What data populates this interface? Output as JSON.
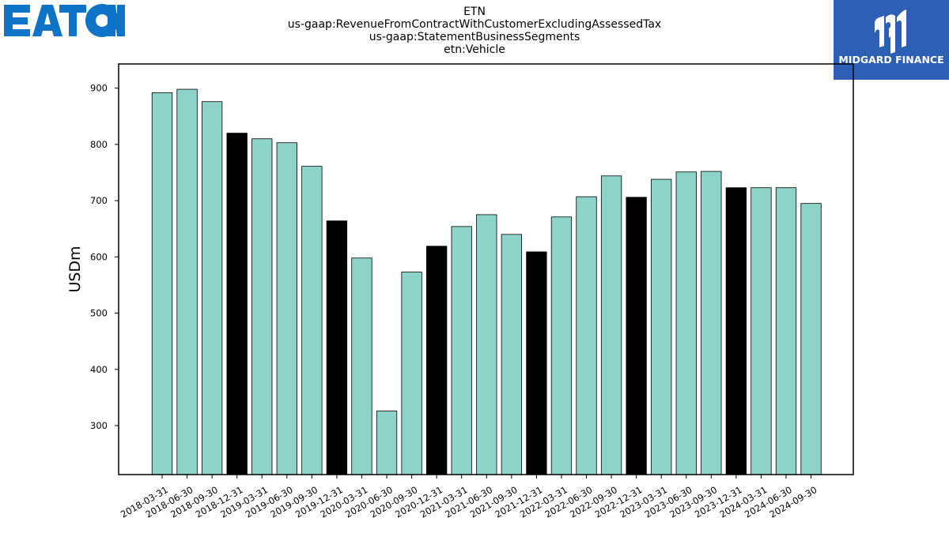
{
  "header": {
    "title_lines": [
      "ETN",
      "us-gaap:RevenueFromContractWithCustomerExcludingAssessedTax",
      "us-gaap:StatementBusinessSegments",
      "etn:Vehicle"
    ]
  },
  "logos": {
    "left": {
      "text": "EATON",
      "color": "#0f74c8"
    },
    "right": {
      "text": "MIDGARD FINANCE",
      "color": "#2d5fb5"
    }
  },
  "chart_data": {
    "type": "bar",
    "ylabel": "USDm",
    "xlabel": "",
    "ylim": [
      213,
      943
    ],
    "yticks": [
      300,
      400,
      500,
      600,
      700,
      800,
      900
    ],
    "colors": {
      "default": "#8dd3c7",
      "q4": "#000000"
    },
    "categories": [
      "2018-03-31",
      "2018-06-30",
      "2018-09-30",
      "2018-12-31",
      "2019-03-31",
      "2019-06-30",
      "2019-09-30",
      "2019-12-31",
      "2020-03-31",
      "2020-06-30",
      "2020-09-30",
      "2020-12-31",
      "2021-03-31",
      "2021-06-30",
      "2021-09-30",
      "2021-12-31",
      "2022-03-31",
      "2022-06-30",
      "2022-09-30",
      "2022-12-31",
      "2023-03-31",
      "2023-06-30",
      "2023-09-30",
      "2023-12-31",
      "2024-03-31",
      "2024-06-30",
      "2024-09-30"
    ],
    "values": [
      892,
      898,
      876,
      820,
      810,
      803,
      761,
      664,
      598,
      326,
      573,
      619,
      654,
      675,
      640,
      609,
      671,
      707,
      744,
      706,
      738,
      751,
      752,
      723,
      723,
      723,
      695
    ]
  }
}
